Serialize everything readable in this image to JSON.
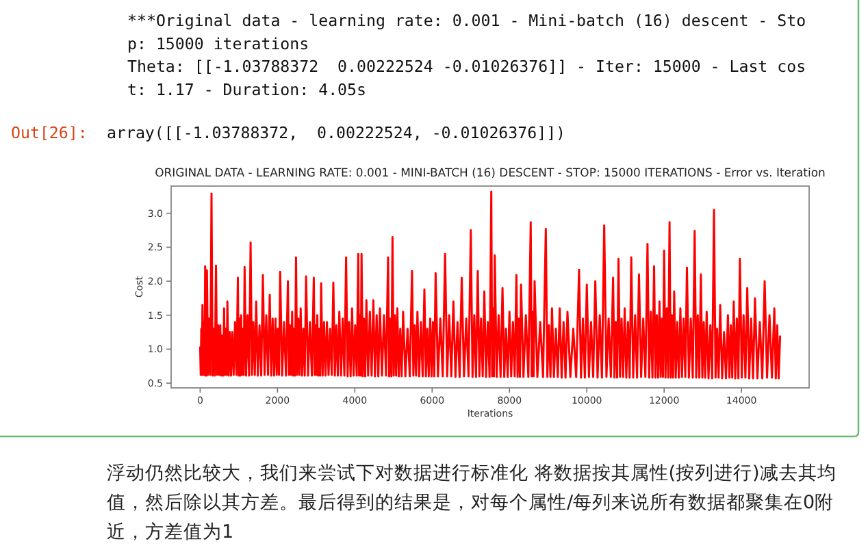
{
  "chart_data": {
    "type": "line",
    "title": "ORIGINAL DATA - LEARNING RATE: 0.001 - MINI-BATCH (16) DESCENT - STOP: 15000 ITERATIONS - Error vs. Iteration",
    "xlabel": "Iterations",
    "ylabel": "Cost",
    "color": "#ff0000",
    "x": [
      0,
      15,
      30,
      45,
      60,
      78,
      95,
      112,
      130,
      142,
      153,
      164,
      176,
      206,
      235,
      264,
      294,
      323,
      352,
      381,
      410,
      438,
      465,
      492,
      520,
      545,
      570,
      595,
      620,
      641,
      662,
      684,
      705,
      736,
      767,
      798,
      830,
      866,
      903,
      940,
      976,
      997,
      1018,
      1039,
      1060,
      1082,
      1105,
      1128,
      1150,
      1189,
      1227,
      1266,
      1305,
      1341,
      1377,
      1414,
      1450,
      1493,
      1536,
      1580,
      1623,
      1667,
      1711,
      1756,
      1800,
      1838,
      1875,
      1912,
      1950,
      1980,
      2010,
      2040,
      2070,
      2120,
      2170,
      2220,
      2270,
      2298,
      2325,
      2352,
      2380,
      2405,
      2430,
      2455,
      2480,
      2510,
      2540,
      2570,
      2600,
      2635,
      2670,
      2705,
      2740,
      2790,
      2840,
      2890,
      2940,
      2962,
      2985,
      3008,
      3030,
      3055,
      3080,
      3105,
      3130,
      3168,
      3205,
      3242,
      3280,
      3321,
      3362,
      3404,
      3445,
      3484,
      3522,
      3561,
      3600,
      3644,
      3687,
      3731,
      3775,
      3814,
      3852,
      3891,
      3930,
      3970,
      4010,
      4050,
      4090,
      4111,
      4132,
      4154,
      4175,
      4206,
      4237,
      4269,
      4300,
      4345,
      4390,
      4435,
      4480,
      4522,
      4565,
      4608,
      4650,
      4702,
      4755,
      4808,
      4860,
      4889,
      4917,
      4946,
      4975,
      5006,
      5037,
      5069,
      5100,
      5138,
      5175,
      5212,
      5250,
      5308,
      5365,
      5422,
      5480,
      5515,
      5550,
      5585,
      5620,
      5665,
      5710,
      5755,
      5800,
      5838,
      5875,
      5912,
      5950,
      5985,
      6020,
      6055,
      6090,
      6151,
      6212,
      6274,
      6335,
      6389,
      6442,
      6496,
      6550,
      6604,
      6657,
      6711,
      6765,
      6824,
      6882,
      6941,
      7000,
      7045,
      7090,
      7135,
      7180,
      7222,
      7265,
      7308,
      7350,
      7395,
      7440,
      7485,
      7530,
      7552,
      7575,
      7598,
      7620,
      7670,
      7720,
      7770,
      7820,
      7865,
      7910,
      7955,
      8000,
      8045,
      8090,
      8135,
      8180,
      8210,
      8240,
      8270,
      8300,
      8362,
      8425,
      8488,
      8550,
      8575,
      8600,
      8625,
      8650,
      8722,
      8795,
      8868,
      8940,
      8980,
      9020,
      9060,
      9100,
      9150,
      9200,
      9250,
      9300,
      9350,
      9400,
      9450,
      9500,
      9575,
      9650,
      9725,
      9800,
      9850,
      9900,
      9950,
      10000,
      10055,
      10110,
      10165,
      10220,
      10278,
      10335,
      10392,
      10450,
      10508,
      10565,
      10622,
      10680,
      10715,
      10750,
      10785,
      10820,
      10860,
      10900,
      10940,
      10980,
      11022,
      11065,
      11108,
      11150,
      11200,
      11250,
      11300,
      11350,
      11405,
      11460,
      11515,
      11570,
      11612,
      11655,
      11698,
      11740,
      11775,
      11810,
      11845,
      11880,
      11910,
      11940,
      11970,
      12000,
      12035,
      12070,
      12105,
      12140,
      12170,
      12200,
      12230,
      12260,
      12300,
      12340,
      12380,
      12420,
      12462,
      12505,
      12548,
      12590,
      12640,
      12690,
      12740,
      12790,
      12830,
      12870,
      12910,
      12950,
      12988,
      13025,
      13062,
      13100,
      13148,
      13195,
      13242,
      13290,
      13330,
      13370,
      13410,
      13450,
      13500,
      13550,
      13600,
      13650,
      13688,
      13725,
      13762,
      13800,
      13840,
      13880,
      13920,
      13960,
      14008,
      14055,
      14102,
      14150,
      14200,
      14250,
      14300,
      14350,
      14412,
      14475,
      14538,
      14600,
      14662,
      14725,
      14788,
      14850,
      14888,
      14925,
      14962,
      15000
    ],
    "values": [
      1.04,
      0.62,
      1.3,
      0.62,
      1.65,
      0.62,
      1.4,
      0.62,
      2.22,
      0.61,
      1.25,
      0.61,
      2.16,
      0.62,
      1.45,
      0.62,
      3.29,
      0.61,
      1.3,
      0.61,
      2.23,
      0.62,
      1.35,
      0.62,
      1.35,
      0.61,
      1.2,
      0.61,
      1.6,
      0.62,
      1.3,
      0.62,
      1.7,
      0.61,
      1.25,
      0.61,
      1.25,
      0.62,
      1.4,
      0.62,
      2.05,
      0.61,
      1.45,
      0.61,
      1.5,
      0.62,
      1.3,
      0.62,
      2.21,
      0.61,
      1.5,
      0.61,
      2.57,
      0.62,
      1.4,
      0.62,
      1.7,
      0.61,
      1.35,
      0.61,
      2.09,
      0.62,
      1.5,
      0.62,
      1.8,
      0.61,
      1.45,
      0.61,
      1.45,
      0.62,
      1.3,
      0.62,
      2.14,
      0.61,
      1.4,
      0.61,
      2.0,
      0.62,
      1.35,
      0.62,
      1.55,
      0.61,
      1.3,
      0.61,
      2.35,
      0.62,
      1.45,
      0.62,
      1.6,
      0.61,
      1.3,
      0.61,
      2.07,
      0.61,
      1.4,
      0.61,
      2.05,
      0.62,
      1.35,
      0.62,
      1.5,
      0.61,
      1.3,
      0.61,
      1.97,
      0.61,
      1.4,
      0.61,
      1.4,
      0.62,
      1.3,
      0.62,
      1.98,
      0.61,
      1.35,
      0.61,
      1.55,
      0.61,
      1.45,
      0.61,
      2.35,
      0.6,
      1.4,
      0.6,
      1.6,
      0.61,
      1.35,
      0.61,
      2.4,
      0.61,
      1.5,
      0.61,
      2.4,
      0.6,
      1.45,
      0.6,
      1.72,
      0.61,
      1.55,
      0.61,
      1.72,
      0.6,
      1.5,
      0.6,
      1.6,
      0.61,
      1.5,
      0.61,
      2.35,
      0.6,
      1.45,
      0.6,
      2.65,
      0.61,
      1.5,
      0.61,
      1.6,
      0.6,
      1.3,
      0.6,
      1.55,
      0.6,
      1.3,
      0.6,
      2.15,
      0.61,
      1.35,
      0.61,
      1.55,
      0.6,
      1.4,
      0.6,
      1.88,
      0.6,
      1.3,
      0.6,
      1.45,
      0.6,
      1.4,
      0.6,
      2.12,
      0.6,
      1.45,
      0.6,
      2.4,
      0.6,
      1.5,
      0.6,
      1.7,
      0.59,
      1.4,
      0.59,
      2.05,
      0.6,
      1.45,
      0.6,
      2.75,
      0.59,
      1.5,
      0.59,
      2.15,
      0.6,
      1.45,
      0.6,
      1.85,
      0.59,
      1.4,
      0.59,
      3.32,
      0.6,
      1.6,
      0.6,
      2.38,
      0.59,
      1.5,
      0.59,
      1.9,
      0.59,
      1.3,
      0.59,
      1.55,
      0.6,
      1.4,
      0.6,
      2.09,
      0.59,
      1.45,
      0.59,
      1.95,
      0.59,
      1.5,
      0.59,
      2.87,
      0.6,
      1.55,
      0.6,
      2.0,
      0.59,
      1.4,
      0.59,
      2.77,
      0.59,
      1.35,
      0.59,
      1.6,
      0.59,
      1.3,
      0.59,
      1.6,
      0.58,
      1.4,
      0.58,
      1.55,
      0.59,
      1.3,
      0.59,
      2.17,
      0.58,
      1.45,
      0.58,
      1.95,
      0.59,
      1.4,
      0.59,
      2.0,
      0.58,
      1.5,
      0.58,
      2.82,
      0.59,
      1.45,
      0.59,
      2.05,
      0.58,
      1.4,
      0.58,
      2.33,
      0.59,
      1.45,
      0.59,
      1.6,
      0.58,
      1.4,
      0.58,
      2.35,
      0.58,
      1.5,
      0.58,
      2.1,
      0.59,
      1.45,
      0.59,
      2.55,
      0.58,
      1.55,
      0.58,
      2.22,
      0.58,
      1.5,
      0.58,
      1.7,
      0.59,
      1.45,
      0.59,
      2.45,
      0.58,
      1.6,
      0.58,
      2.87,
      0.58,
      1.5,
      0.58,
      1.85,
      0.58,
      1.4,
      0.58,
      1.6,
      0.59,
      1.45,
      0.59,
      2.2,
      0.58,
      1.45,
      0.58,
      2.74,
      0.58,
      1.5,
      0.58,
      2.1,
      0.58,
      1.4,
      0.58,
      1.55,
      0.57,
      1.35,
      0.57,
      3.05,
      0.58,
      1.3,
      0.58,
      1.65,
      0.57,
      1.25,
      0.57,
      1.5,
      0.58,
      1.35,
      0.58,
      1.7,
      0.57,
      1.45,
      0.57,
      2.33,
      0.58,
      1.5,
      0.58,
      1.9,
      0.57,
      1.45,
      0.57,
      1.75,
      0.57,
      1.4,
      0.57,
      2.0,
      0.58,
      1.5,
      0.58,
      1.6,
      0.57,
      1.35,
      0.57,
      1.2
    ],
    "xlim": [
      -750,
      15750
    ],
    "ylim": [
      0.43,
      3.4
    ],
    "xticks": [
      0,
      2000,
      4000,
      6000,
      8000,
      10000,
      12000,
      14000
    ],
    "yticks": [
      0.5,
      {
        "value": 1,
        "label": "1.0"
      },
      1.5,
      {
        "value": 2,
        "label": "2.0"
      },
      2.5,
      {
        "value": 3,
        "label": "3.0"
      }
    ],
    "annotations": [
      "***Original data - learning rate: 0.001 - Mini-batch (16) descent - Stop: 15000 iterations",
      "Theta: [[-1.03788372  0.00222524 -0.01026376]] - Iter: 15000 - Last cost: 1.17 - Duration: 4.05s",
      "Out[26]:",
      "array([[-1.03788372,  0.00222524, -0.01026376]])",
      "浮动仍然比较大，我们来尝试下对数据进行标准化 将数据按其属性(按列进行)减去其均值，然后除以其方差。最后得到的结果是，对每个属性/每列来说所有数据都聚集在0附近，方差值为1"
    ]
  }
}
